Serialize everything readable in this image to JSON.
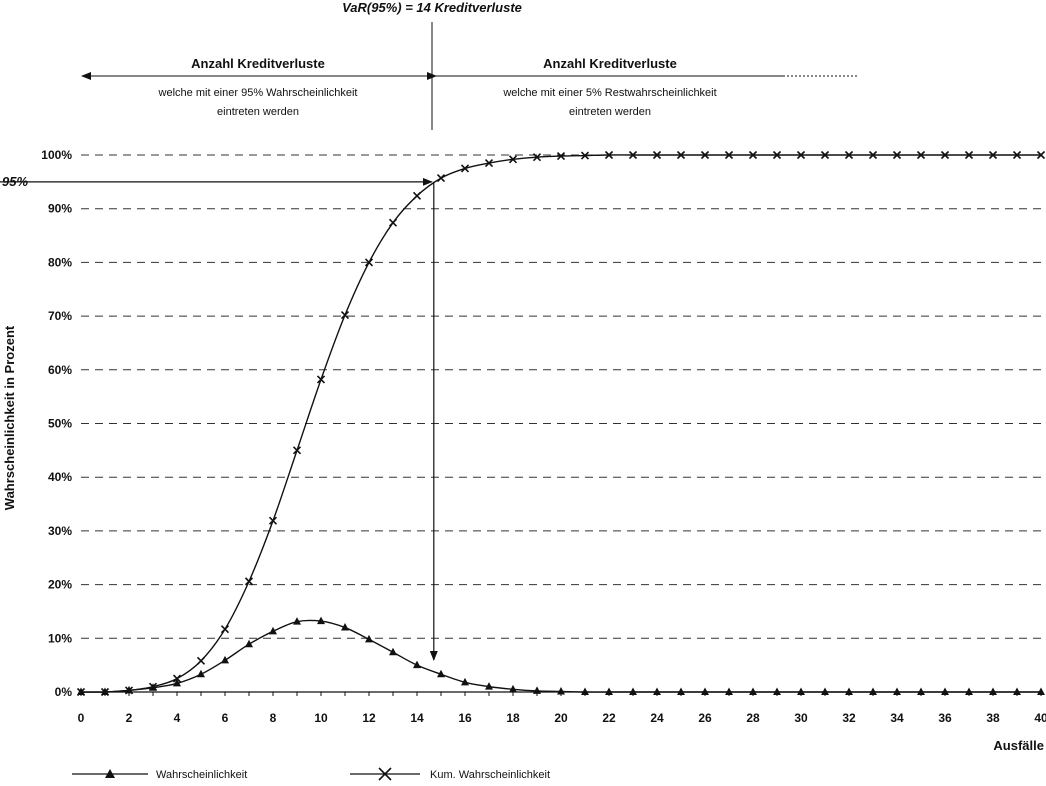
{
  "chart_data": {
    "type": "line",
    "xlabel": "Ausfälle",
    "ylabel": "Wahrscheinlichkeit in Prozent",
    "xlim": [
      0,
      40
    ],
    "ylim": [
      0,
      100
    ],
    "x_ticks": [
      "0",
      "2",
      "4",
      "6",
      "8",
      "10",
      "12",
      "14",
      "16",
      "18",
      "20",
      "22",
      "24",
      "26",
      "28",
      "30",
      "32",
      "34",
      "36",
      "38",
      "40"
    ],
    "y_ticks": [
      "0%",
      "10%",
      "20%",
      "30%",
      "40%",
      "50%",
      "60%",
      "70%",
      "80%",
      "90%",
      "100%"
    ],
    "grid": "horizontal-dashed",
    "legend_placement": "bottom",
    "x": [
      0,
      1,
      2,
      3,
      4,
      5,
      6,
      7,
      8,
      9,
      10,
      11,
      12,
      13,
      14,
      15,
      16,
      17,
      18,
      19,
      20,
      21,
      22,
      23,
      24,
      25,
      26,
      27,
      28,
      29,
      30,
      31,
      32,
      33,
      34,
      35,
      36,
      37,
      38,
      39,
      40
    ],
    "series": [
      {
        "name": "Wahrscheinlichkeit",
        "marker": "triangle",
        "values": [
          0,
          0,
          0.3,
          0.8,
          1.6,
          3.3,
          5.9,
          8.9,
          11.3,
          13.1,
          13.2,
          12.0,
          9.8,
          7.4,
          5.0,
          3.3,
          1.8,
          1.0,
          0.5,
          0.2,
          0.1,
          0,
          0,
          0,
          0,
          0,
          0,
          0,
          0,
          0,
          0,
          0,
          0,
          0,
          0,
          0,
          0,
          0,
          0,
          0,
          0
        ]
      },
      {
        "name": "Kum. Wahrscheinlichkeit",
        "marker": "x",
        "values": [
          0,
          0,
          0.3,
          1.0,
          2.5,
          5.8,
          11.7,
          20.6,
          31.9,
          45.0,
          58.2,
          70.2,
          80.0,
          87.4,
          92.4,
          95.7,
          97.5,
          98.5,
          99.2,
          99.6,
          99.8,
          99.9,
          100,
          100,
          100,
          100,
          100,
          100,
          100,
          100,
          100,
          100,
          100,
          100,
          100,
          100,
          100,
          100,
          100,
          100,
          100
        ]
      }
    ],
    "annotations": {
      "var_title": "VaR(95%) = 14 Kreditverluste",
      "left_heading": "Anzahl Kreditverluste",
      "left_sub_1": "welche mit einer 95% Wahrscheinlichkeit",
      "left_sub_2": "eintreten werden",
      "right_heading": "Anzahl Kreditverluste",
      "right_sub_1": "welche mit einer 5% Restwahrscheinlichkeit",
      "right_sub_2": "eintreten werden",
      "pct_marker": "95%",
      "var_x": 14.7,
      "pct_level": 95
    }
  }
}
